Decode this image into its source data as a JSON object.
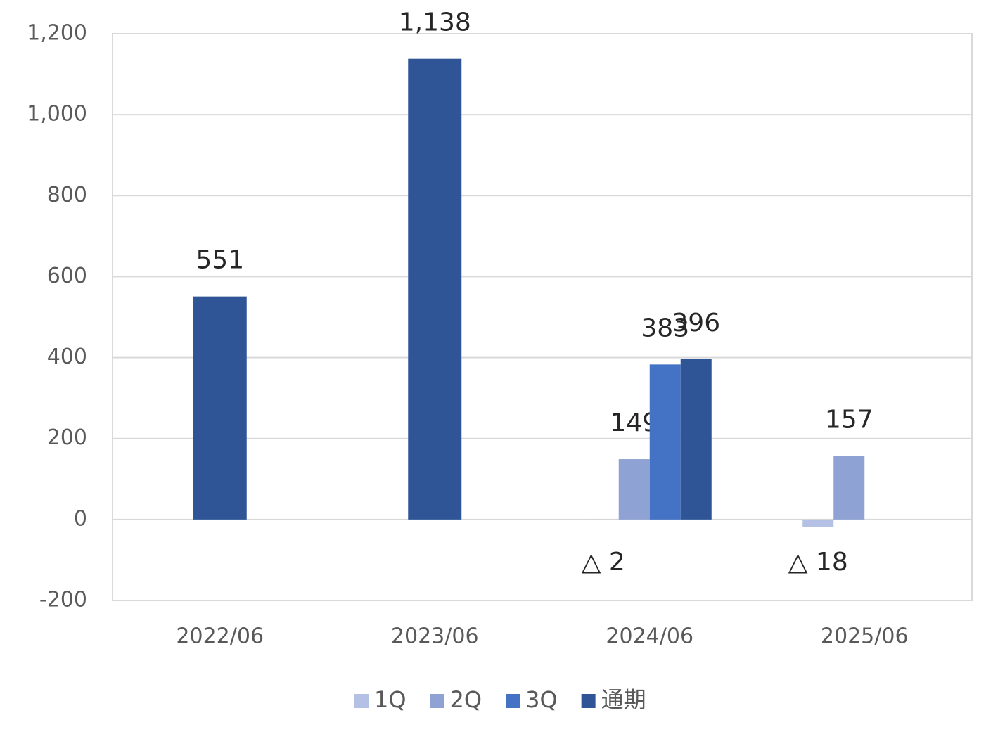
{
  "chart_data": {
    "type": "bar",
    "categories": [
      "2022/06",
      "2023/06",
      "2024/06",
      "2025/06"
    ],
    "series": [
      {
        "name": "1Q",
        "color": "#b4c0e4",
        "values": [
          null,
          null,
          -2,
          -18
        ],
        "value_labels": [
          null,
          null,
          "△ 2",
          "△ 18"
        ]
      },
      {
        "name": "2Q",
        "color": "#8fa2d4",
        "values": [
          null,
          null,
          149,
          157
        ]
      },
      {
        "name": "3Q",
        "color": "#4472c4",
        "values": [
          null,
          null,
          383,
          null
        ]
      },
      {
        "name": "通期",
        "color": "#2f5597",
        "values": [
          551,
          1138,
          396,
          null
        ],
        "value_labels": [
          "551",
          "1,138",
          "396",
          null
        ]
      }
    ],
    "ylim": [
      -200,
      1200
    ],
    "yticks": [
      -200,
      0,
      200,
      400,
      600,
      800,
      {
        "value": 1000,
        "label": "1,000"
      },
      {
        "value": 1200,
        "label": "1,200"
      }
    ],
    "grid": true,
    "legend": "bottom"
  }
}
